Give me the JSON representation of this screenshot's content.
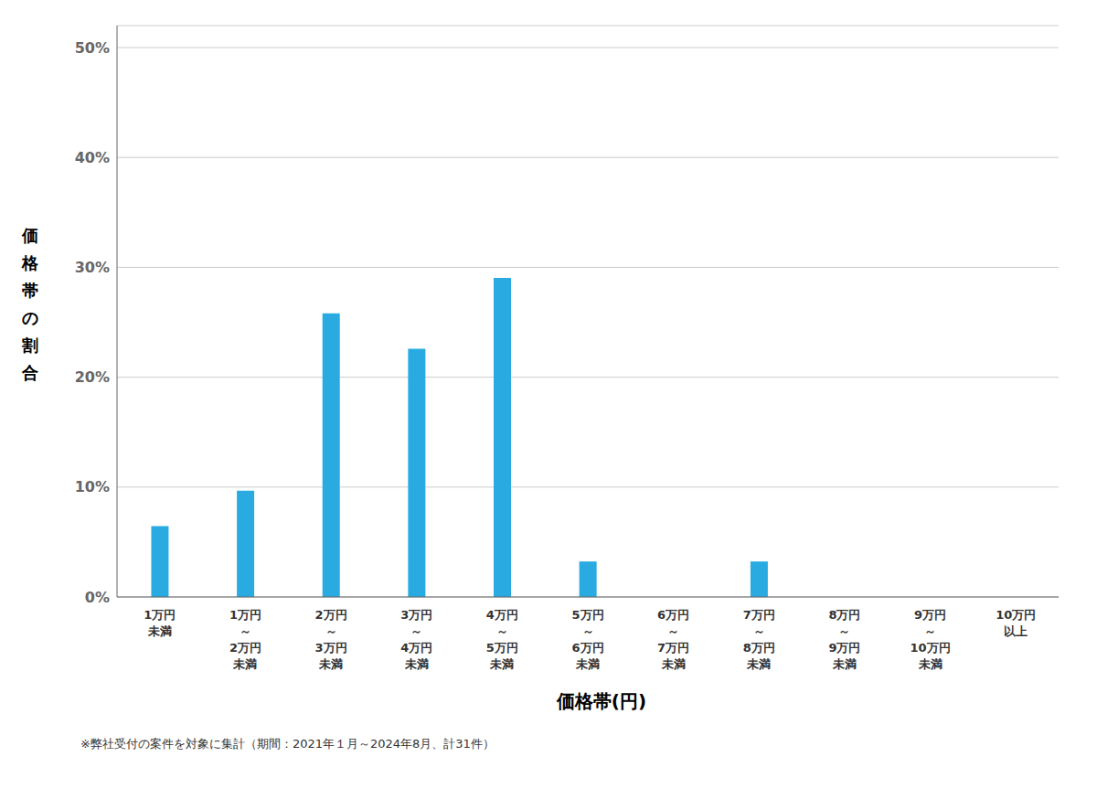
{
  "chart_data": {
    "type": "bar",
    "categories": [
      "1万円\n未満",
      "1万円\n～\n2万円\n未満",
      "2万円\n～\n3万円\n未満",
      "3万円\n～\n4万円\n未満",
      "4万円\n～\n5万円\n未満",
      "5万円\n～\n6万円\n未満",
      "6万円\n～\n7万円\n未満",
      "7万円\n～\n8万円\n未満",
      "8万円\n～\n9万円\n未満",
      "9万円\n～\n10万円\n未満",
      "10万円\n以上"
    ],
    "values": [
      0.0645,
      0.0968,
      0.2581,
      0.2258,
      0.2903,
      0.0323,
      0.0,
      0.0323,
      0.0,
      0.0,
      0.0
    ],
    "color": "#29ABE2",
    "xlabel": "価格帯(円)",
    "ylabel": "価格帯の割合",
    "ylim": [
      0,
      0.52
    ],
    "yticks": [
      {
        "value": 0.0,
        "label": "0%"
      },
      {
        "value": 0.1,
        "label": "10%"
      },
      {
        "value": 0.2,
        "label": "20%"
      },
      {
        "value": 0.3,
        "label": "30%"
      },
      {
        "value": 0.4,
        "label": "40%"
      },
      {
        "value": 0.5,
        "label": "50%"
      }
    ],
    "grid": true,
    "annotations": [
      "※弊社受付の案件を対象に集計（期間：2021年１月～2024年8月、計31件）"
    ]
  }
}
